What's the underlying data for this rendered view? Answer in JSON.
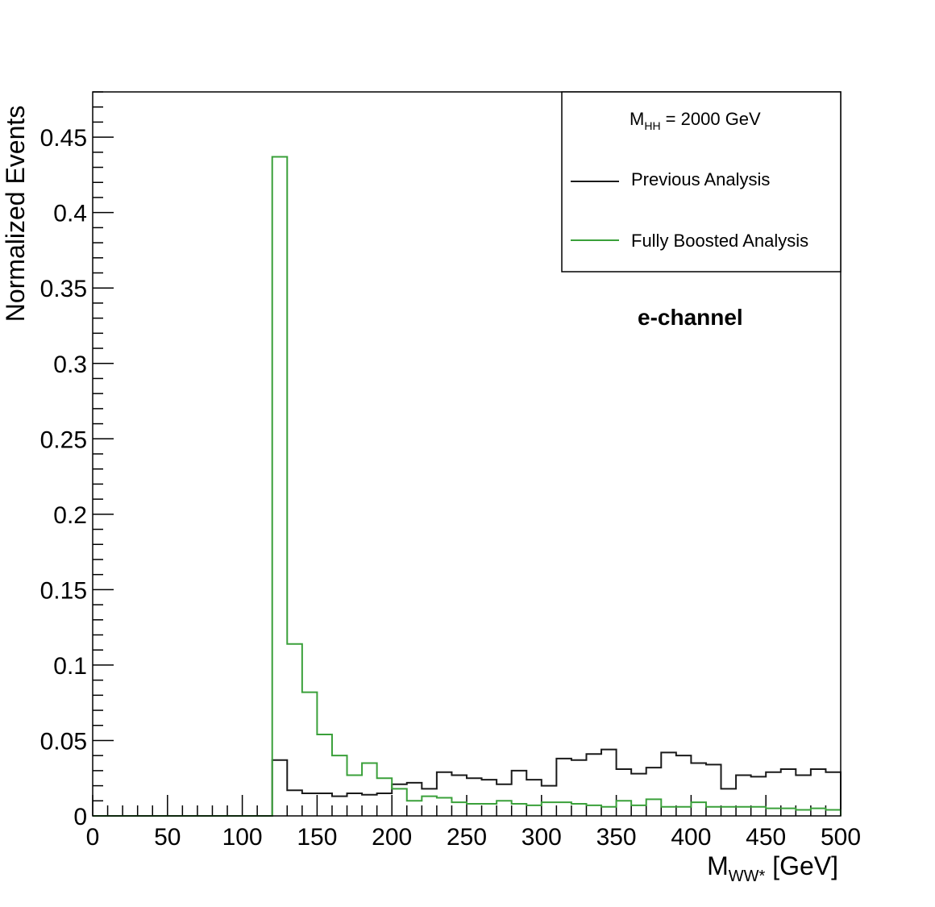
{
  "chart_data": {
    "type": "line",
    "subtype": "step-histogram",
    "xlabel": "M",
    "xlabel_subscript": "WW*",
    "xlabel_unit": " [GeV]",
    "ylabel": "Normalized Events",
    "xlim": [
      0,
      500
    ],
    "ylim": [
      0,
      0.48
    ],
    "x_ticks": [
      0,
      50,
      100,
      150,
      200,
      250,
      300,
      350,
      400,
      450,
      500
    ],
    "y_ticks": [
      0,
      0.05,
      0.1,
      0.15,
      0.2,
      0.25,
      0.3,
      0.35,
      0.4,
      0.45
    ],
    "y_tick_labels": [
      "0",
      "0.05",
      "0.1",
      "0.15",
      "0.2",
      "0.25",
      "0.3",
      "0.35",
      "0.4",
      "0.45"
    ],
    "grid": false,
    "legend_position": "top-right",
    "legend_header": {
      "main": "M",
      "sub": "HH",
      "rest": " = 2000 GeV"
    },
    "annotation": "e-channel",
    "bin_edges": [
      0,
      10,
      20,
      30,
      40,
      50,
      60,
      70,
      80,
      90,
      100,
      110,
      120,
      130,
      140,
      150,
      160,
      170,
      180,
      190,
      200,
      210,
      220,
      230,
      240,
      250,
      260,
      270,
      280,
      290,
      300,
      310,
      320,
      330,
      340,
      350,
      360,
      370,
      380,
      390,
      400,
      410,
      420,
      430,
      440,
      450,
      460,
      470,
      480,
      490,
      500
    ],
    "series": [
      {
        "name": "Previous Analysis",
        "color": "#1a1a1a",
        "values": [
          0,
          0,
          0,
          0,
          0,
          0,
          0,
          0,
          0,
          0,
          0,
          0,
          0.037,
          0.017,
          0.015,
          0.015,
          0.013,
          0.015,
          0.014,
          0.015,
          0.021,
          0.022,
          0.018,
          0.029,
          0.027,
          0.025,
          0.024,
          0.021,
          0.03,
          0.024,
          0.02,
          0.038,
          0.037,
          0.041,
          0.044,
          0.031,
          0.028,
          0.032,
          0.042,
          0.04,
          0.035,
          0.034,
          0.018,
          0.027,
          0.026,
          0.029,
          0.031,
          0.027,
          0.031,
          0.029
        ]
      },
      {
        "name": "Fully Boosted Analysis",
        "color": "#3aa03a",
        "values": [
          0,
          0,
          0,
          0,
          0,
          0,
          0,
          0,
          0,
          0,
          0,
          0,
          0.437,
          0.114,
          0.082,
          0.054,
          0.04,
          0.027,
          0.035,
          0.025,
          0.018,
          0.01,
          0.013,
          0.012,
          0.009,
          0.008,
          0.008,
          0.01,
          0.008,
          0.007,
          0.009,
          0.009,
          0.008,
          0.007,
          0.006,
          0.01,
          0.007,
          0.011,
          0.006,
          0.006,
          0.009,
          0.006,
          0.006,
          0.006,
          0.006,
          0.005,
          0.005,
          0.004,
          0.005,
          0.004
        ]
      }
    ]
  }
}
